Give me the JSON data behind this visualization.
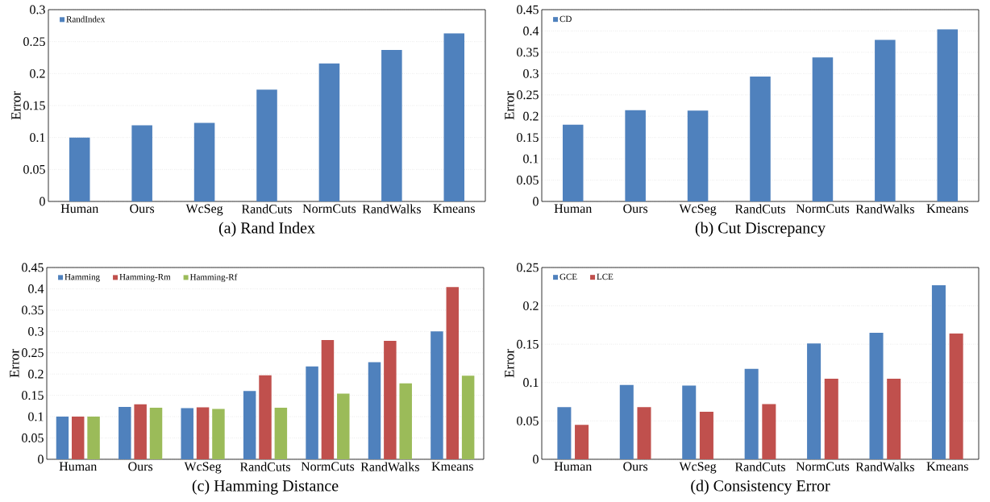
{
  "chart_data": [
    {
      "type": "bar",
      "title": "(a)  Rand Index",
      "ylabel": "Error",
      "categories": [
        "Human",
        "Ours",
        "WcSeg",
        "RandCuts",
        "NormCuts",
        "RandWalks",
        "Kmeans"
      ],
      "series": [
        {
          "name": "RandIndex",
          "color": "#4f81bd",
          "values": [
            0.1,
            0.119,
            0.123,
            0.175,
            0.216,
            0.237,
            0.263
          ]
        }
      ],
      "ylim": [
        0,
        0.3
      ],
      "yticks": [
        0,
        0.05,
        0.1,
        0.15,
        0.2,
        0.25,
        0.3
      ],
      "grid": "y",
      "legend": "top left"
    },
    {
      "type": "bar",
      "title": "(b)  Cut Discrepancy",
      "ylabel": "Error",
      "categories": [
        "Human",
        "Ours",
        "WcSeg",
        "RandCuts",
        "NormCuts",
        "RandWalks",
        "Kmeans"
      ],
      "series": [
        {
          "name": "CD",
          "color": "#4f81bd",
          "values": [
            0.18,
            0.214,
            0.213,
            0.293,
            0.338,
            0.379,
            0.404
          ]
        }
      ],
      "ylim": [
        0,
        0.45
      ],
      "yticks": [
        0,
        0.05,
        0.1,
        0.15,
        0.2,
        0.25,
        0.3,
        0.35,
        0.4,
        0.45
      ],
      "grid": "y",
      "legend": "top left"
    },
    {
      "type": "bar",
      "title": "(c)  Hamming Distance",
      "ylabel": "Error",
      "categories": [
        "Human",
        "Ours",
        "WcSeg",
        "RandCuts",
        "NormCuts",
        "RandWalks",
        "Kmeans"
      ],
      "series": [
        {
          "name": "Hamming",
          "color": "#4f81bd",
          "values": [
            0.1,
            0.123,
            0.12,
            0.16,
            0.218,
            0.228,
            0.3
          ]
        },
        {
          "name": "Hamming-Rm",
          "color": "#c0504d",
          "values": [
            0.1,
            0.129,
            0.122,
            0.197,
            0.28,
            0.278,
            0.404
          ]
        },
        {
          "name": "Hamming-Rf",
          "color": "#9bbb59",
          "values": [
            0.1,
            0.121,
            0.118,
            0.121,
            0.154,
            0.178,
            0.196
          ]
        }
      ],
      "ylim": [
        0,
        0.45
      ],
      "yticks": [
        0,
        0.05,
        0.1,
        0.15,
        0.2,
        0.25,
        0.3,
        0.35,
        0.4,
        0.45
      ],
      "grid": "y",
      "legend": "top left"
    },
    {
      "type": "bar",
      "title": "(d)  Consistency Error",
      "ylabel": "Error",
      "categories": [
        "Human",
        "Ours",
        "WcSeg",
        "RandCuts",
        "NormCuts",
        "RandWalks",
        "Kmeans"
      ],
      "series": [
        {
          "name": "GCE",
          "color": "#4f81bd",
          "values": [
            0.068,
            0.097,
            0.096,
            0.118,
            0.151,
            0.165,
            0.227
          ]
        },
        {
          "name": "LCE",
          "color": "#c0504d",
          "values": [
            0.045,
            0.068,
            0.062,
            0.072,
            0.105,
            0.105,
            0.164
          ]
        }
      ],
      "ylim": [
        0,
        0.25
      ],
      "yticks": [
        0,
        0.05,
        0.1,
        0.15,
        0.2,
        0.25
      ],
      "grid": "y",
      "legend": "top left"
    }
  ]
}
